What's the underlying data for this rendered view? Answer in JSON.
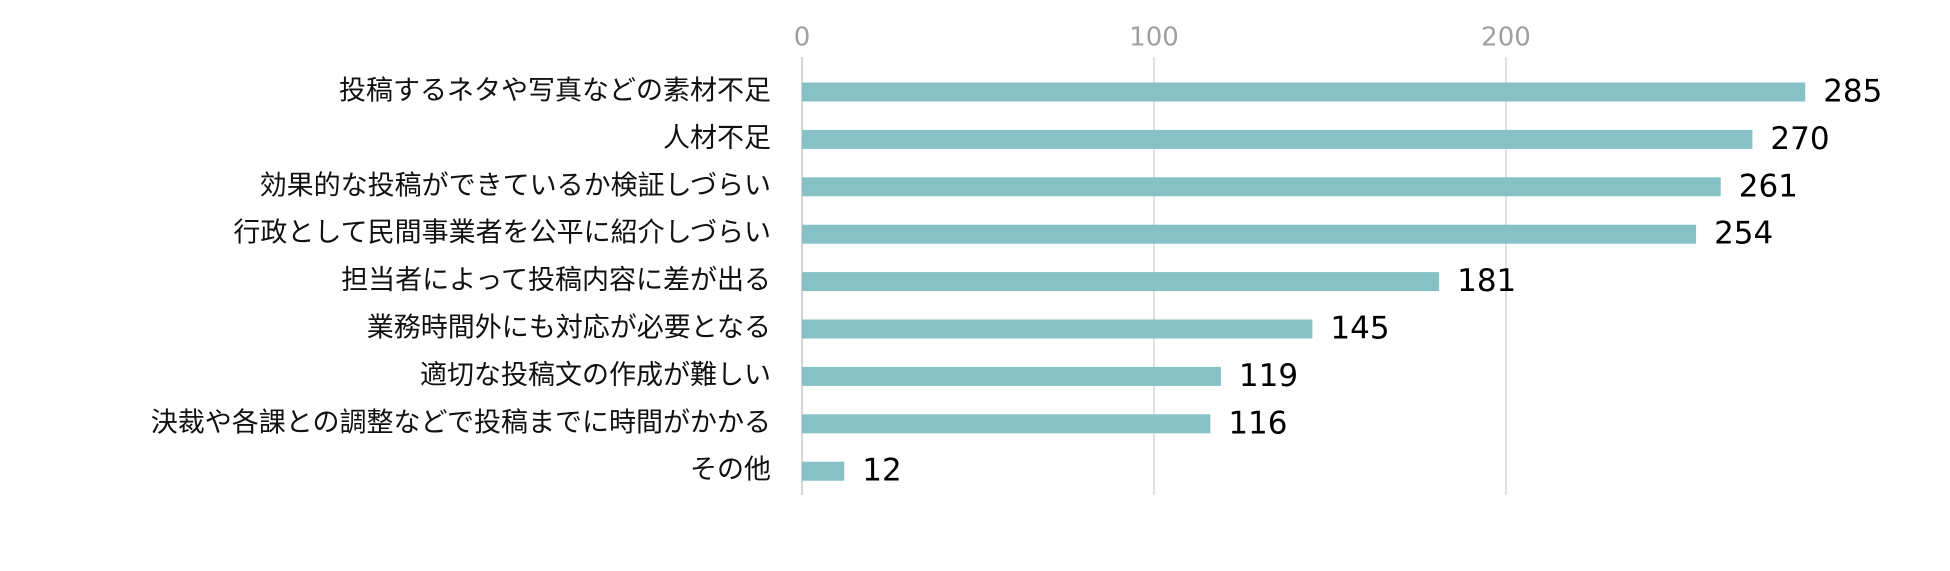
{
  "chart_data": {
    "type": "bar",
    "orientation": "horizontal",
    "categories": [
      "投稿するネタや写真などの素材不足",
      "人材不足",
      "効果的な投稿ができているか検証しづらい",
      "行政として民間事業者を公平に紹介しづらい",
      "担当者によって投稿内容に差が出る",
      "業務時間外にも対応が必要となる",
      "適切な投稿文の作成が難しい",
      "決裁や各課との調整などで投稿までに時間がかかる",
      "その他"
    ],
    "values": [
      285,
      270,
      261,
      254,
      181,
      145,
      119,
      116,
      12
    ],
    "value_labels": [
      "285",
      "270",
      "261",
      "254",
      "181",
      "145",
      "119",
      "116",
      "12"
    ],
    "x_ticks": [
      0,
      100,
      200
    ],
    "x_tick_labels": [
      "0",
      "100",
      "200"
    ],
    "xlim": [
      0,
      300
    ],
    "grid": true,
    "bar_color": "#86c1c6",
    "tick_color": "#a0a0a0",
    "grid_color": "#d6d6d6"
  }
}
